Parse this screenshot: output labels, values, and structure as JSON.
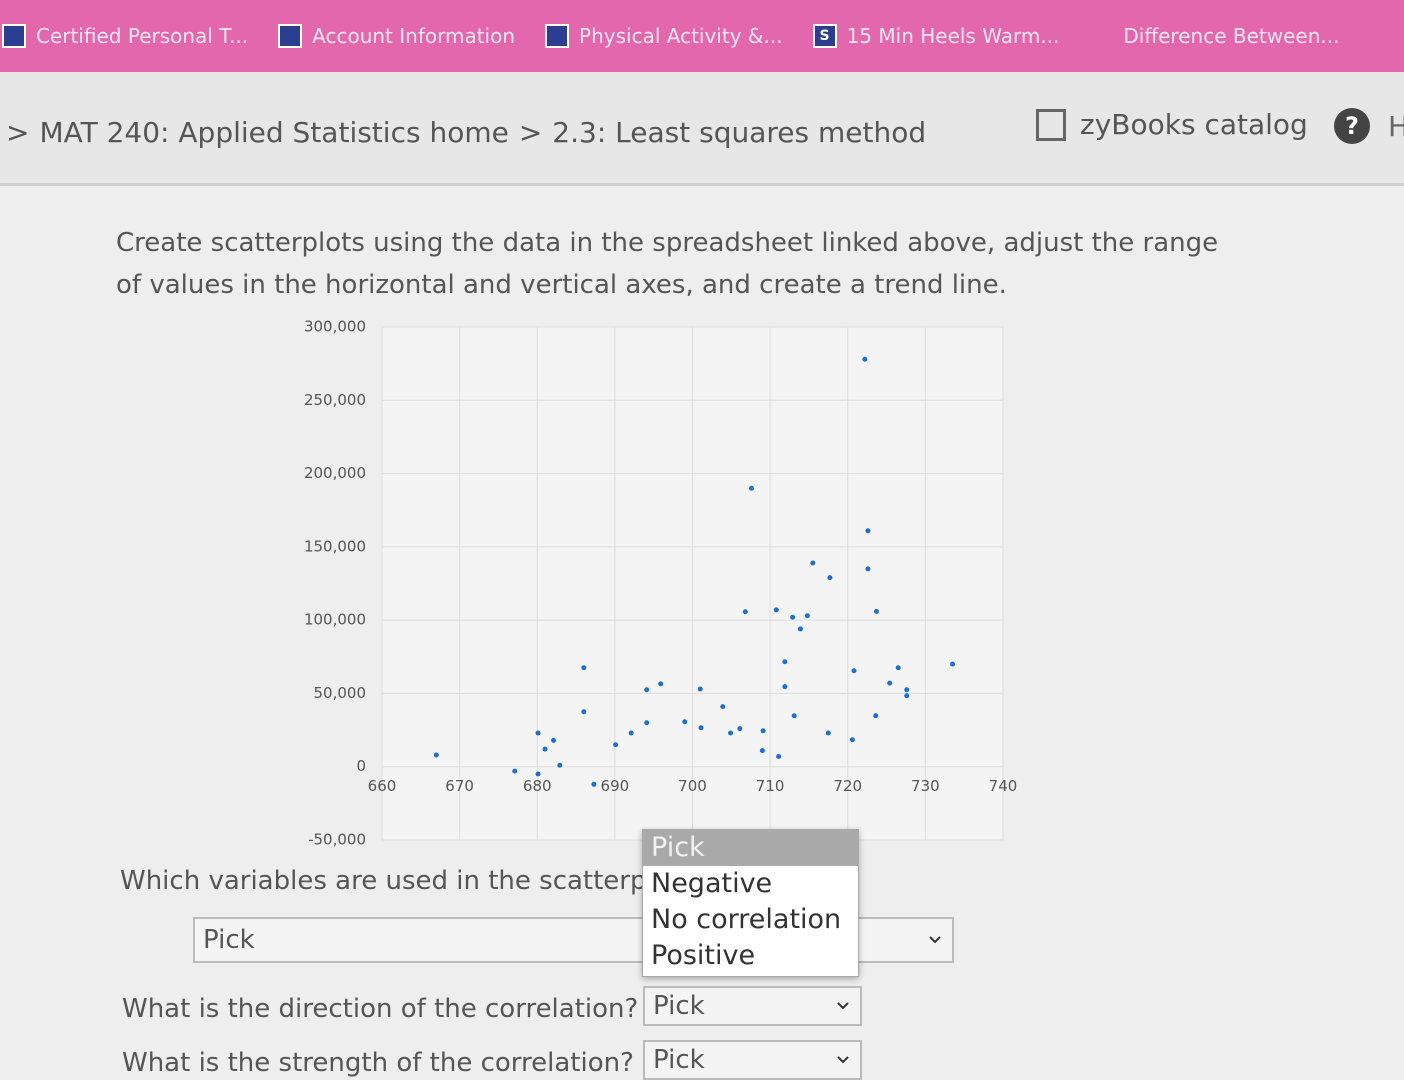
{
  "bookmarks": [
    {
      "label": "Certified Personal T..."
    },
    {
      "label": "Account Information"
    },
    {
      "label": "Physical Activity &..."
    },
    {
      "icon": "S",
      "label": "15 Min Heels Warm..."
    },
    {
      "label": "Difference Between..."
    }
  ],
  "breadcrumb": {
    "separator": ">",
    "items": [
      "MAT 240: Applied Statistics home",
      "2.3: Least squares method"
    ]
  },
  "catalog": "zyBooks catalog",
  "help": "?",
  "help_label": "H",
  "prompt": "Create scatterplots using the data in the spreadsheet linked above, adjust the range of values in the horizontal and vertical axes, and create a trend line.",
  "chart_data": {
    "type": "scatter",
    "color": "#1f6fd0",
    "grid": true,
    "x": [
      667.0,
      677.1,
      680.1,
      682.1,
      681.0,
      682.9,
      680.1,
      686.0,
      686.0,
      687.3,
      690.1,
      692.1,
      694.1,
      695.9,
      694.1,
      699.0,
      701.0,
      701.1,
      703.9,
      704.9,
      706.1,
      707.6,
      706.8,
      709.1,
      709.0,
      711.1,
      710.8,
      712.9,
      713.9,
      714.8,
      711.9,
      711.9,
      713.1,
      715.5,
      717.7,
      722.2,
      722.6,
      722.6,
      723.7,
      720.8,
      717.5,
      720.6,
      723.6,
      725.4,
      726.5,
      727.6,
      727.6,
      733.5
    ],
    "values": [
      8000,
      -3000,
      23000,
      18000,
      12000,
      1000,
      -5000,
      67500,
      37500,
      -12000,
      15000,
      23000,
      52500,
      56500,
      30000,
      30700,
      53000,
      26600,
      41000,
      23000,
      26000,
      190000,
      105700,
      24500,
      11000,
      7000,
      107000,
      102000,
      94000,
      103000,
      71600,
      54600,
      34800,
      139000,
      129000,
      278000,
      161000,
      135000,
      106000,
      65500,
      23000,
      18400,
      34800,
      57000,
      67500,
      52500,
      48400,
      70000
    ],
    "xlim": [
      660,
      740
    ],
    "xticks": [
      660,
      670,
      680,
      690,
      700,
      710,
      720,
      730,
      740
    ],
    "ylim": [
      -50000,
      300000
    ],
    "yticks": [
      {
        "value": -50000,
        "label": "-50,000"
      },
      0,
      {
        "value": 50000,
        "label": "50,000"
      },
      {
        "value": 100000,
        "label": "100,000"
      },
      {
        "value": 150000,
        "label": "150,000"
      },
      {
        "value": 200000,
        "label": "200,000"
      },
      {
        "value": 250000,
        "label": "250,000"
      },
      {
        "value": 300000,
        "label": "300,000"
      }
    ]
  },
  "questions": [
    {
      "text": "Which variables are used in the scatterplot?",
      "selected": "Pick"
    },
    {
      "text": "What is the direction of the correlation?",
      "selected": "Pick"
    },
    {
      "text": "What is the strength of the correlation?",
      "selected": "Pick"
    }
  ],
  "dropdown_options": [
    "Pick",
    "Negative",
    "No correlation",
    "Positive"
  ]
}
